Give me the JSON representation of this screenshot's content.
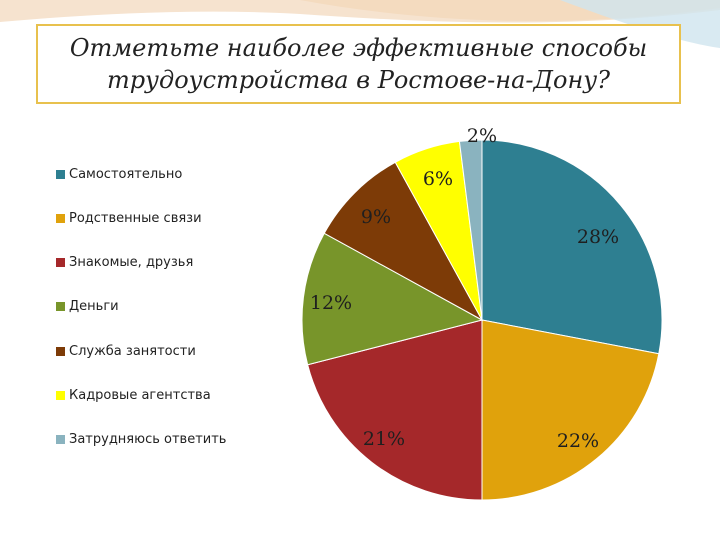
{
  "title_lines": [
    "Отметьте наиболее эффективные способы",
    "трудоустройства в Ростове-на-Дону?"
  ],
  "chart_data": {
    "type": "pie",
    "title": "Отметьте наиболее эффективные способы трудоустройства в Ростове-на-Дону?",
    "legend_position": "left",
    "start": "top, clockwise",
    "slices": [
      {
        "label": "Самостоятельно",
        "value": 28,
        "value_label": "28%",
        "color": "#2e7f91"
      },
      {
        "label": "Родственные связи",
        "value": 22,
        "value_label": "22%",
        "color": "#e0a20c"
      },
      {
        "label": "Знакомые, друзья",
        "value": 21,
        "value_label": "21%",
        "color": "#a5282a"
      },
      {
        "label": "Деньги",
        "value": 12,
        "value_label": "12%",
        "color": "#78952a"
      },
      {
        "label": "Служба занятости",
        "value": 9,
        "value_label": "9%",
        "color": "#7d3b07"
      },
      {
        "label": "Кадровые агентства",
        "value": 6,
        "value_label": "6%",
        "color": "#ffff00"
      },
      {
        "label": "Затрудняюсь ответить",
        "value": 2,
        "value_label": "2%",
        "color": "#8ab3bf"
      }
    ]
  }
}
